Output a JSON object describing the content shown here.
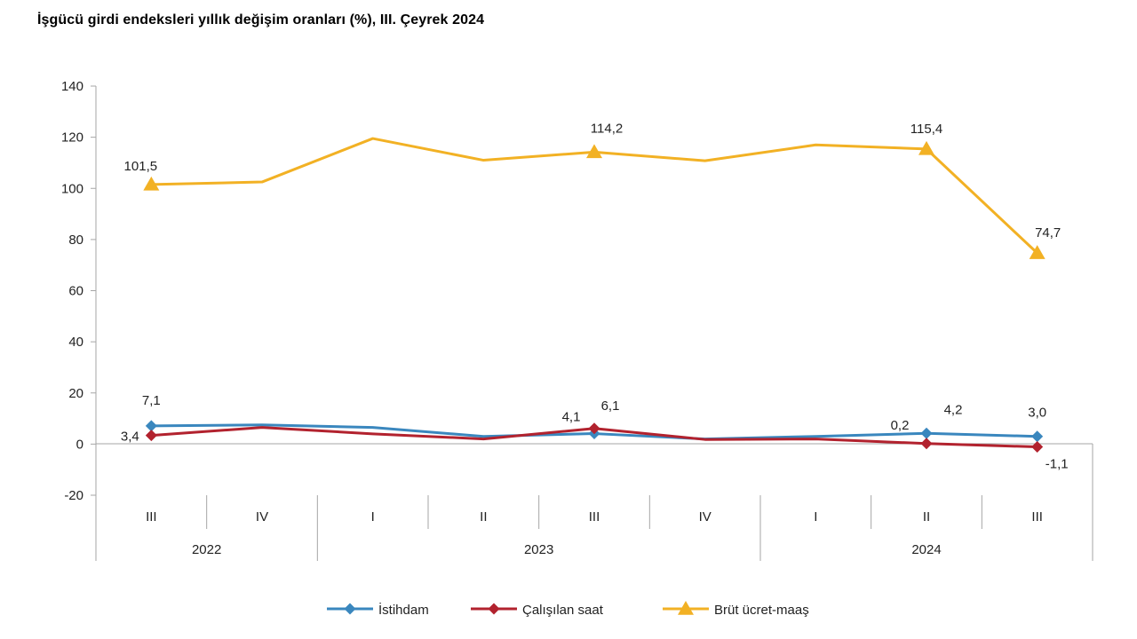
{
  "chart_data": {
    "type": "line",
    "title": "İşgücü girdi endeksleri yıllık değişim oranları (%), III. Çeyrek 2024",
    "categories": [
      "III",
      "IV",
      "I",
      "II",
      "III",
      "IV",
      "I",
      "II",
      "III"
    ],
    "year_groups": [
      {
        "label": "2022",
        "start": 0,
        "end": 1
      },
      {
        "label": "2023",
        "start": 2,
        "end": 5
      },
      {
        "label": "2024",
        "start": 6,
        "end": 8
      }
    ],
    "ylim": [
      -20,
      140
    ],
    "yticks": [
      -20,
      0,
      20,
      40,
      60,
      80,
      100,
      120,
      140
    ],
    "grid": false,
    "legend_position": "bottom",
    "series": [
      {
        "name": "İstihdam",
        "color": "#3a87be",
        "marker": "diamond",
        "values": [
          7.1,
          7.5,
          6.5,
          3.0,
          4.1,
          2.0,
          3.0,
          4.2,
          3.0
        ],
        "labels": [
          {
            "index": 0,
            "text": "7,1"
          },
          {
            "index": 4,
            "text": "4,1"
          },
          {
            "index": 7,
            "text": "4,2"
          },
          {
            "index": 8,
            "text": "3,0"
          }
        ]
      },
      {
        "name": "Çalışılan saat",
        "color": "#b2222e",
        "marker": "diamond",
        "values": [
          3.4,
          6.5,
          4.0,
          2.0,
          6.1,
          1.8,
          2.0,
          0.2,
          -1.1
        ],
        "labels": [
          {
            "index": 0,
            "text": "3,4"
          },
          {
            "index": 4,
            "text": "6,1"
          },
          {
            "index": 7,
            "text": "0,2"
          },
          {
            "index": 8,
            "text": "-1,1"
          }
        ]
      },
      {
        "name": "Brüt ücret-maaş",
        "color": "#f2b124",
        "marker": "triangle",
        "values": [
          101.5,
          102.5,
          119.5,
          111.0,
          114.2,
          110.8,
          117.0,
          115.4,
          74.7
        ],
        "labels": [
          {
            "index": 0,
            "text": "101,5"
          },
          {
            "index": 4,
            "text": "114,2"
          },
          {
            "index": 7,
            "text": "115,4"
          },
          {
            "index": 8,
            "text": "74,7"
          }
        ]
      }
    ]
  }
}
